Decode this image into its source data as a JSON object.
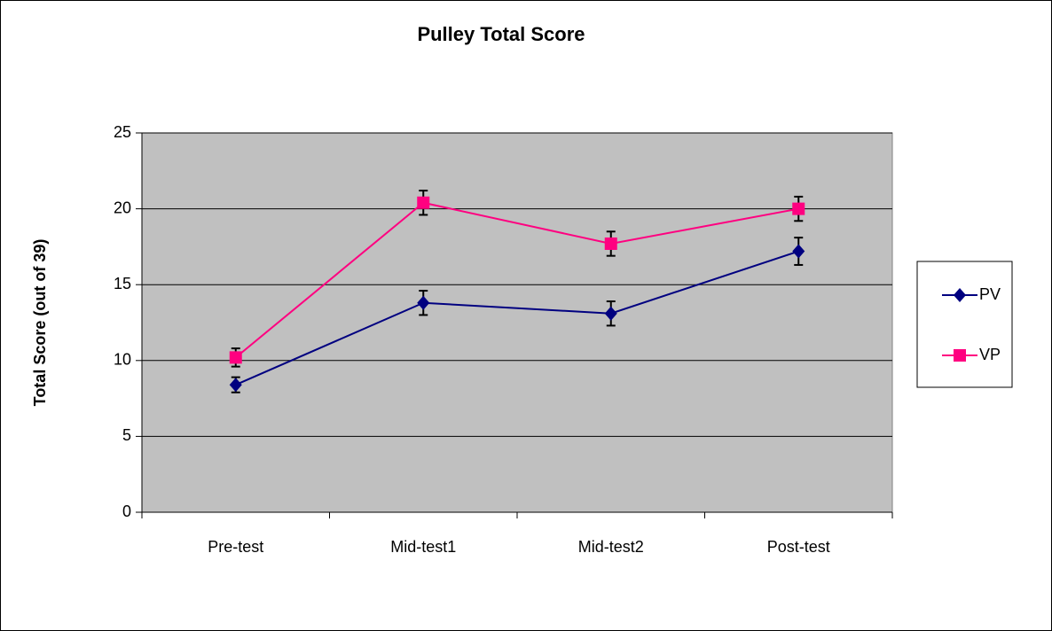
{
  "chart_data": {
    "type": "line",
    "title": "Pulley Total Score",
    "y_label": "Total Score (out of 39)",
    "categories": [
      "Pre-test",
      "Mid-test1",
      "Mid-test2",
      "Post-test"
    ],
    "series": [
      {
        "name": "PV",
        "color": "#000080",
        "marker": "diamond",
        "values": [
          8.4,
          13.8,
          13.1,
          17.2
        ],
        "errors": [
          0.5,
          0.8,
          0.8,
          0.9
        ]
      },
      {
        "name": "VP",
        "color": "#ff0080",
        "marker": "square",
        "values": [
          10.2,
          20.4,
          17.7,
          20.0
        ],
        "errors": [
          0.6,
          0.8,
          0.8,
          0.8
        ]
      }
    ],
    "ylim": [
      0,
      25
    ],
    "yticks": [
      0,
      5,
      10,
      15,
      20,
      25
    ],
    "grid": true,
    "legend": "right",
    "plot_background": "#c0c0c0"
  }
}
